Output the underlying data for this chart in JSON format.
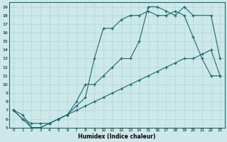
{
  "xlabel": "Humidex (Indice chaleur)",
  "xlim": [
    -0.5,
    23.5
  ],
  "ylim": [
    5,
    19.5
  ],
  "xticks": [
    0,
    1,
    2,
    3,
    4,
    5,
    6,
    7,
    8,
    9,
    10,
    11,
    12,
    13,
    14,
    15,
    16,
    17,
    18,
    19,
    20,
    21,
    22,
    23
  ],
  "yticks": [
    5,
    6,
    7,
    8,
    9,
    10,
    11,
    12,
    13,
    14,
    15,
    16,
    17,
    18,
    19
  ],
  "bg_color": "#cce8e8",
  "line_color": "#1a6b6b",
  "grid_color": "#b0d0d0",
  "line1_x": [
    0,
    1,
    2,
    3,
    4,
    5,
    6,
    7,
    8,
    9,
    10,
    11,
    12,
    13,
    14,
    15,
    16,
    17,
    18,
    19,
    20,
    21,
    22,
    23
  ],
  "line1_y": [
    7,
    6,
    5,
    5,
    5.5,
    6,
    6.5,
    7.5,
    8.5,
    13,
    16.5,
    16.5,
    17.5,
    18,
    18,
    18.5,
    18,
    18,
    18.5,
    18,
    15.5,
    13,
    11,
    11
  ],
  "line2_x": [
    0,
    1,
    2,
    3,
    4,
    5,
    6,
    7,
    8,
    9,
    10,
    11,
    12,
    13,
    14,
    15,
    16,
    17,
    18,
    19,
    20,
    22,
    23
  ],
  "line2_y": [
    7,
    6.5,
    5,
    5,
    5.5,
    6,
    6.5,
    8,
    10,
    10,
    11,
    12,
    13,
    13,
    15,
    19,
    19,
    18.5,
    18,
    19,
    18,
    18,
    13
  ],
  "line3_x": [
    0,
    1,
    2,
    3,
    4,
    5,
    6,
    7,
    8,
    9,
    10,
    11,
    12,
    13,
    14,
    15,
    16,
    17,
    18,
    19,
    20,
    21,
    22,
    23
  ],
  "line3_y": [
    7,
    6,
    5.5,
    5.5,
    5.5,
    6,
    6.5,
    7,
    7.5,
    8,
    8.5,
    9,
    9.5,
    10,
    10.5,
    11,
    11.5,
    12,
    12.5,
    13,
    13,
    13.5,
    14,
    11
  ]
}
